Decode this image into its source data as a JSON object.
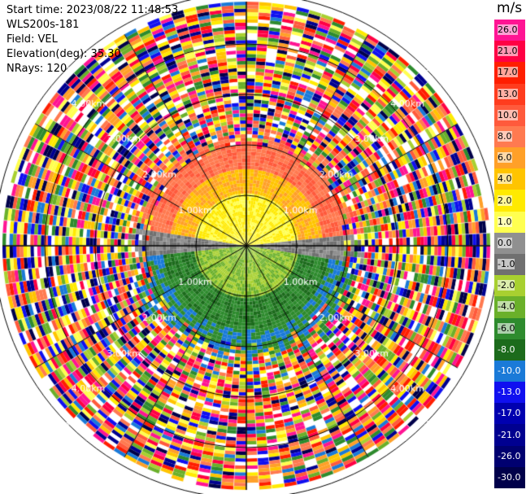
{
  "header": {
    "start_time": "Start time: 2023/08/22 11:48:53",
    "site": "WLS200s-181",
    "field": "Field: VEL",
    "elevation": "Elevation(deg): 35.30",
    "nrays": "NRays: 120"
  },
  "colorbar": {
    "unit": "m/s",
    "labels": [
      "26.0",
      "21.0",
      "17.0",
      "13.0",
      "10.0",
      "8.0",
      "6.0",
      "4.0",
      "2.0",
      "1.0",
      "0.0",
      "-1.0",
      "-2.0",
      "-4.0",
      "-6.0",
      "-8.0",
      "-10.0",
      "-13.0",
      "-17.0",
      "-21.0",
      "-26.0",
      "-30.0"
    ],
    "colors": [
      "#ff1493",
      "#ff0044",
      "#ff1e00",
      "#ff3c1e",
      "#ff5a3c",
      "#ff7a50",
      "#ffa028",
      "#ffc400",
      "#ffea00",
      "#ffff50",
      "#909090",
      "#707070",
      "#a8d030",
      "#6ab02a",
      "#2e8b2e",
      "#1c6b1c",
      "#1a7ad8",
      "#1010f0",
      "#0000b0",
      "#000090",
      "#000070",
      "#00004a"
    ]
  },
  "range_labels": [
    "1.00km",
    "2.00km",
    "3.00km",
    "4.00km",
    "5.00km"
  ],
  "radar": {
    "rings_km": [
      1,
      2,
      3,
      4,
      5
    ],
    "max_range_km": 7.3,
    "spokes": 12
  }
}
